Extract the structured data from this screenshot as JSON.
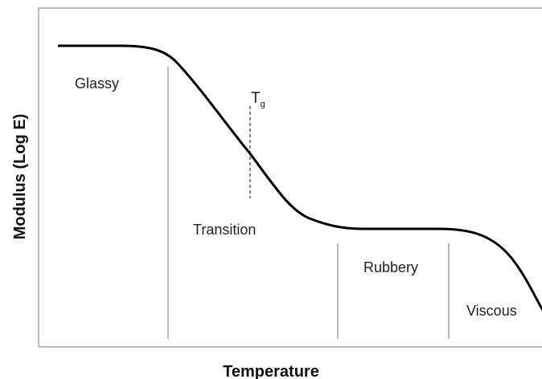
{
  "axes": {
    "x_label": "Temperature",
    "y_label": "Modulus (Log E)"
  },
  "regions": [
    {
      "label": "Glassy"
    },
    {
      "label": "Transition"
    },
    {
      "label": "Rubbery"
    },
    {
      "label": "Viscous"
    }
  ],
  "marker": {
    "label": "T",
    "subscript": "g"
  }
}
